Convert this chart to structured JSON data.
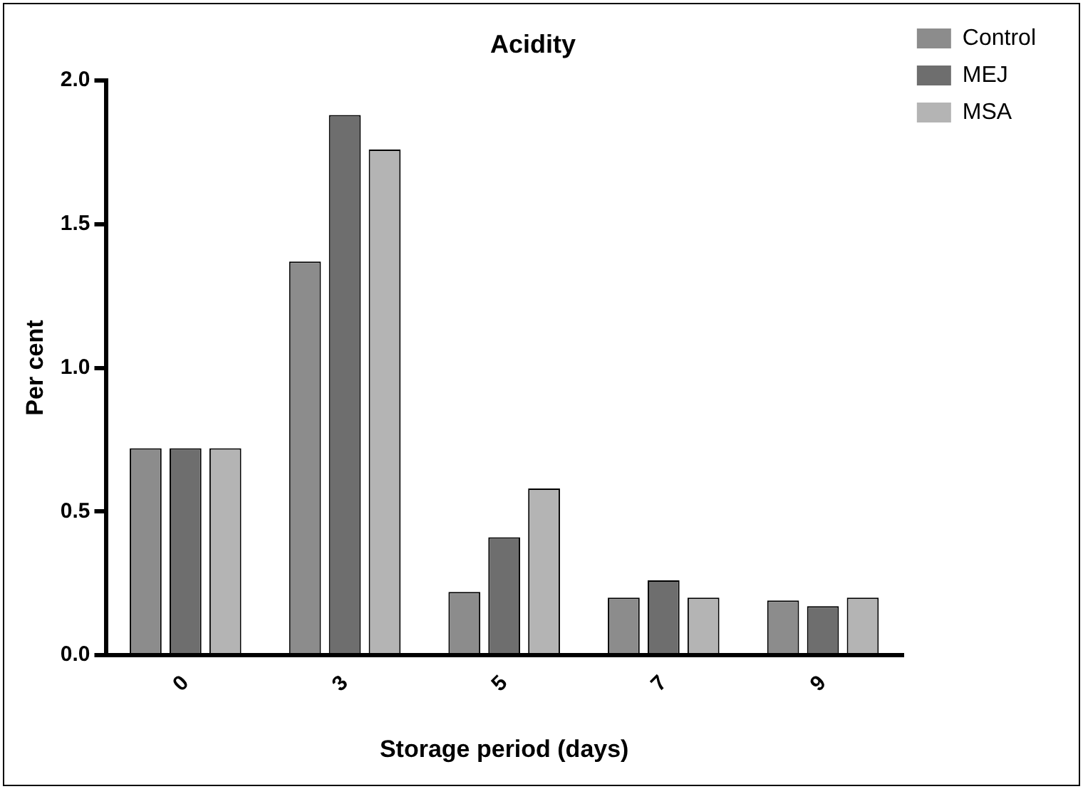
{
  "chart_data": {
    "type": "bar",
    "title": "Acidity",
    "xlabel": "Storage period (days)",
    "ylabel": "Per cent",
    "categories": [
      "0",
      "3",
      "5",
      "7",
      "9"
    ],
    "series": [
      {
        "name": "Control",
        "color": "#8c8c8c",
        "values": [
          0.72,
          1.37,
          0.22,
          0.2,
          0.19
        ]
      },
      {
        "name": "MEJ",
        "color": "#6e6e6e",
        "values": [
          0.72,
          1.88,
          0.41,
          0.26,
          0.17
        ]
      },
      {
        "name": "MSA",
        "color": "#b4b4b4",
        "values": [
          0.72,
          1.76,
          0.58,
          0.2,
          0.2
        ]
      }
    ],
    "ylim": [
      0,
      2
    ],
    "yticks": [
      {
        "value": 0,
        "label": "0.0"
      },
      {
        "value": 0.5,
        "label": "0.5"
      },
      {
        "value": 1,
        "label": "1.0"
      },
      {
        "value": 1.5,
        "label": "1.5"
      },
      {
        "value": 2,
        "label": "2.0"
      }
    ],
    "grid": false,
    "legend": "right"
  }
}
